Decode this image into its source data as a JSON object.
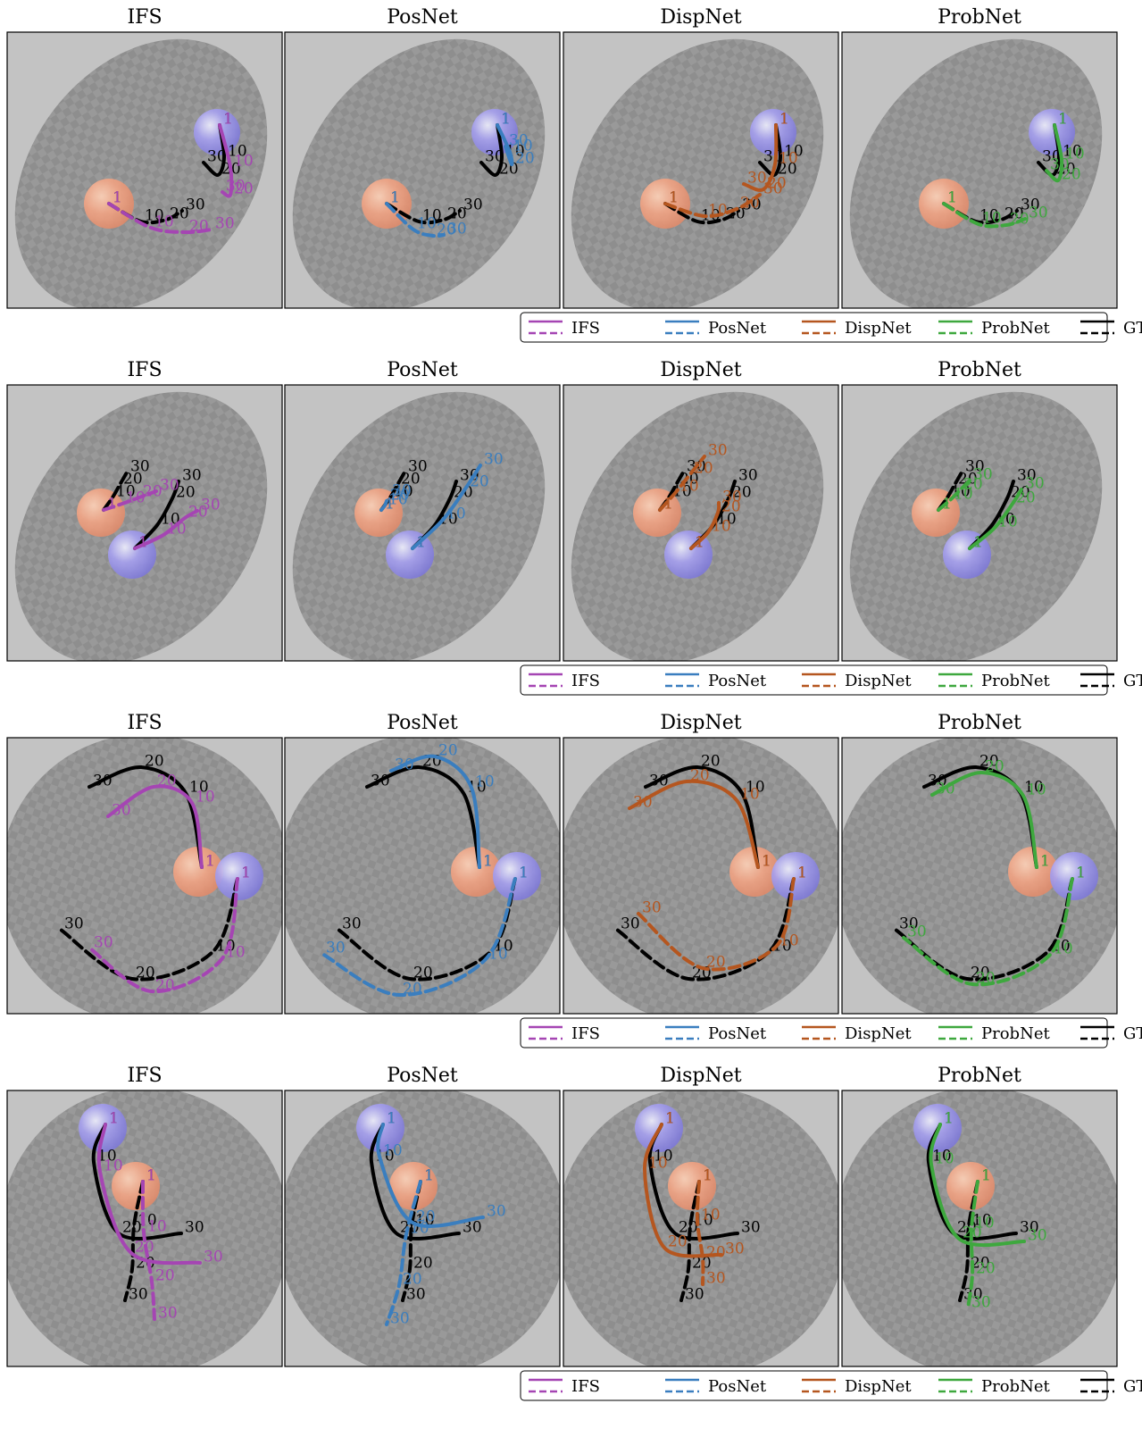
{
  "figure": {
    "timestep_labels": [
      "1",
      "10",
      "20",
      "30"
    ],
    "rows": [
      {
        "titles": [
          "IFS",
          "PosNet",
          "DispNet",
          "ProbNet"
        ],
        "legend": [
          "IFS",
          "PosNet",
          "DispNet",
          "ProbNet",
          "GT"
        ]
      },
      {
        "titles": [
          "IFS",
          "PosNet",
          "DispNet",
          "ProbNet"
        ],
        "legend": [
          "IFS",
          "PosNet",
          "DispNet",
          "ProbNet",
          "GT"
        ]
      },
      {
        "titles": [
          "IFS",
          "PosNet",
          "DispNet",
          "ProbNet"
        ],
        "legend": [
          "IFS",
          "PosNet",
          "DispNet",
          "ProbNet",
          "GT"
        ]
      },
      {
        "titles": [
          "IFS",
          "PosNet",
          "DispNet",
          "ProbNet"
        ],
        "legend": [
          "IFS",
          "PosNet",
          "DispNet",
          "ProbNet",
          "GT"
        ]
      }
    ]
  }
}
